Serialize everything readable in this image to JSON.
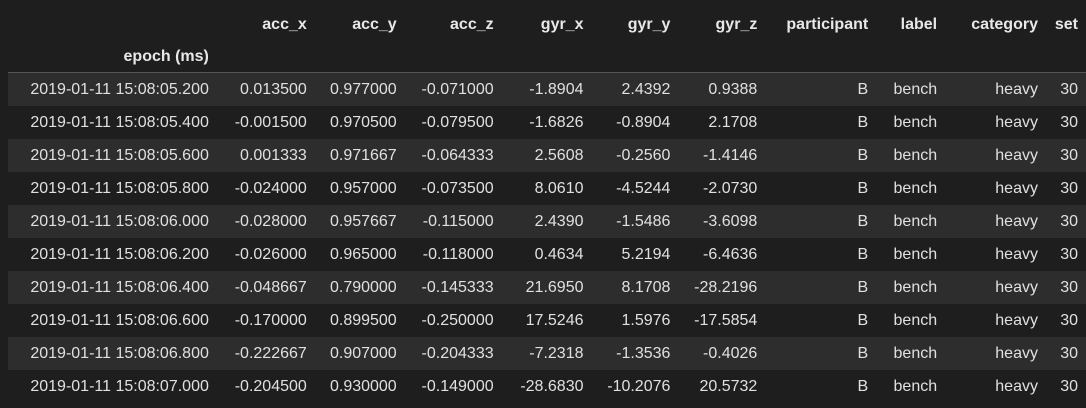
{
  "table": {
    "index_name": "epoch (ms)",
    "columns": [
      "acc_x",
      "acc_y",
      "acc_z",
      "gyr_x",
      "gyr_y",
      "gyr_z",
      "participant",
      "label",
      "category",
      "set"
    ],
    "rows": [
      {
        "index": "2019-01-11 15:08:05.200",
        "cells": [
          "0.013500",
          "0.977000",
          "-0.071000",
          "-1.8904",
          "2.4392",
          "0.9388",
          "B",
          "bench",
          "heavy",
          "30"
        ]
      },
      {
        "index": "2019-01-11 15:08:05.400",
        "cells": [
          "-0.001500",
          "0.970500",
          "-0.079500",
          "-1.6826",
          "-0.8904",
          "2.1708",
          "B",
          "bench",
          "heavy",
          "30"
        ]
      },
      {
        "index": "2019-01-11 15:08:05.600",
        "cells": [
          "0.001333",
          "0.971667",
          "-0.064333",
          "2.5608",
          "-0.2560",
          "-1.4146",
          "B",
          "bench",
          "heavy",
          "30"
        ]
      },
      {
        "index": "2019-01-11 15:08:05.800",
        "cells": [
          "-0.024000",
          "0.957000",
          "-0.073500",
          "8.0610",
          "-4.5244",
          "-2.0730",
          "B",
          "bench",
          "heavy",
          "30"
        ]
      },
      {
        "index": "2019-01-11 15:08:06.000",
        "cells": [
          "-0.028000",
          "0.957667",
          "-0.115000",
          "2.4390",
          "-1.5486",
          "-3.6098",
          "B",
          "bench",
          "heavy",
          "30"
        ]
      },
      {
        "index": "2019-01-11 15:08:06.200",
        "cells": [
          "-0.026000",
          "0.965000",
          "-0.118000",
          "0.4634",
          "5.2194",
          "-6.4636",
          "B",
          "bench",
          "heavy",
          "30"
        ]
      },
      {
        "index": "2019-01-11 15:08:06.400",
        "cells": [
          "-0.048667",
          "0.790000",
          "-0.145333",
          "21.6950",
          "8.1708",
          "-28.2196",
          "B",
          "bench",
          "heavy",
          "30"
        ]
      },
      {
        "index": "2019-01-11 15:08:06.600",
        "cells": [
          "-0.170000",
          "0.899500",
          "-0.250000",
          "17.5246",
          "1.5976",
          "-17.5854",
          "B",
          "bench",
          "heavy",
          "30"
        ]
      },
      {
        "index": "2019-01-11 15:08:06.800",
        "cells": [
          "-0.222667",
          "0.907000",
          "-0.204333",
          "-7.2318",
          "-1.3536",
          "-0.4026",
          "B",
          "bench",
          "heavy",
          "30"
        ]
      },
      {
        "index": "2019-01-11 15:08:07.000",
        "cells": [
          "-0.204500",
          "0.930000",
          "-0.149000",
          "-28.6830",
          "-10.2076",
          "20.5732",
          "B",
          "bench",
          "heavy",
          "30"
        ]
      }
    ]
  }
}
